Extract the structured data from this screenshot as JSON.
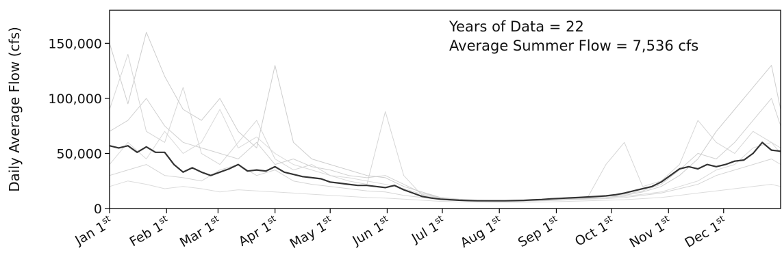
{
  "chart_data": {
    "type": "line",
    "title": "",
    "ylabel": "Daily Average Flow (cfs)",
    "xlabel": "",
    "ylim": [
      0,
      180000
    ],
    "xlim": [
      1,
      366
    ],
    "yticks": [
      {
        "value": 0,
        "label": "0"
      },
      {
        "value": 50000,
        "label": "50,000"
      },
      {
        "value": 100000,
        "label": "100,000"
      },
      {
        "value": 150000,
        "label": "150,000"
      }
    ],
    "xticks": [
      {
        "day": 1,
        "month": "Jan",
        "num": "1",
        "suffix": "st"
      },
      {
        "day": 32,
        "month": "Feb",
        "num": "1",
        "suffix": "st"
      },
      {
        "day": 60,
        "month": "Mar",
        "num": "1",
        "suffix": "st"
      },
      {
        "day": 91,
        "month": "Apr",
        "num": "1",
        "suffix": "st"
      },
      {
        "day": 121,
        "month": "May",
        "num": "1",
        "suffix": "st"
      },
      {
        "day": 152,
        "month": "Jun",
        "num": "1",
        "suffix": "st"
      },
      {
        "day": 182,
        "month": "Jul",
        "num": "1",
        "suffix": "st"
      },
      {
        "day": 213,
        "month": "Aug",
        "num": "1",
        "suffix": "st"
      },
      {
        "day": 244,
        "month": "Sep",
        "num": "1",
        "suffix": "st"
      },
      {
        "day": 274,
        "month": "Oct",
        "num": "1",
        "suffix": "st"
      },
      {
        "day": 305,
        "month": "Nov",
        "num": "1",
        "suffix": "st"
      },
      {
        "day": 335,
        "month": "Dec",
        "num": "1",
        "suffix": "st"
      }
    ],
    "annotations": [
      "Years of Data = 22",
      "Average Summer Flow = 7,536 cfs"
    ],
    "legend": "none",
    "grid": false,
    "series": [
      {
        "role": "average",
        "color": "#333333",
        "x": [
          1,
          6,
          11,
          16,
          21,
          26,
          31,
          36,
          41,
          46,
          51,
          56,
          61,
          66,
          71,
          76,
          81,
          86,
          91,
          96,
          101,
          106,
          111,
          116,
          121,
          126,
          131,
          136,
          141,
          146,
          151,
          156,
          161,
          166,
          171,
          176,
          181,
          186,
          191,
          196,
          201,
          206,
          211,
          216,
          221,
          226,
          231,
          236,
          241,
          246,
          251,
          256,
          261,
          266,
          271,
          276,
          281,
          286,
          291,
          296,
          301,
          306,
          311,
          316,
          321,
          326,
          331,
          336,
          341,
          346,
          351,
          356,
          361,
          366
        ],
        "y": [
          57000,
          55000,
          57000,
          51000,
          56000,
          51000,
          51000,
          40000,
          33000,
          37000,
          33000,
          30000,
          33000,
          36000,
          40000,
          34000,
          35000,
          34000,
          38000,
          33000,
          31000,
          29000,
          28000,
          27000,
          24000,
          23000,
          22000,
          21000,
          21000,
          20000,
          19000,
          21000,
          17000,
          14000,
          11000,
          9500,
          8500,
          8000,
          7500,
          7200,
          7000,
          7000,
          7000,
          7000,
          7200,
          7400,
          7800,
          8200,
          8800,
          9200,
          9600,
          10000,
          10500,
          11000,
          11500,
          12500,
          14000,
          16000,
          18000,
          20000,
          24000,
          30000,
          36000,
          38000,
          36000,
          40000,
          38000,
          40000,
          43000,
          44000,
          50000,
          60000,
          53000,
          52000
        ]
      },
      {
        "role": "annual",
        "color": "#c8c8c8",
        "x": [
          1,
          11,
          21,
          31,
          41,
          51,
          61,
          71,
          81,
          91,
          101,
          111,
          121,
          131,
          141,
          151,
          161,
          171,
          181,
          191,
          201,
          211,
          221,
          231,
          241,
          251,
          261,
          271,
          281,
          291,
          301,
          311,
          321,
          331,
          341,
          351,
          361,
          366
        ],
        "y": [
          150000,
          95000,
          160000,
          120000,
          90000,
          80000,
          100000,
          70000,
          55000,
          130000,
          60000,
          45000,
          40000,
          35000,
          30000,
          28000,
          20000,
          15000,
          10000,
          8000,
          7500,
          7000,
          7000,
          7200,
          7500,
          8000,
          9000,
          10000,
          12000,
          15000,
          20000,
          30000,
          45000,
          70000,
          90000,
          110000,
          130000,
          90000
        ]
      },
      {
        "role": "annual",
        "color": "#d2d2d2",
        "x": [
          1,
          11,
          21,
          31,
          41,
          51,
          61,
          71,
          81,
          91,
          101,
          111,
          121,
          131,
          141,
          151,
          161,
          171,
          181,
          191,
          201,
          211,
          221,
          231,
          241,
          251,
          261,
          271,
          281,
          291,
          301,
          311,
          321,
          331,
          341,
          351,
          361,
          366
        ],
        "y": [
          90000,
          140000,
          70000,
          60000,
          110000,
          50000,
          40000,
          60000,
          80000,
          45000,
          35000,
          40000,
          30000,
          25000,
          22000,
          88000,
          30000,
          12000,
          9000,
          7800,
          7000,
          6800,
          6800,
          7000,
          7500,
          8500,
          10000,
          40000,
          60000,
          20000,
          25000,
          40000,
          80000,
          60000,
          50000,
          70000,
          60000,
          55000
        ]
      },
      {
        "role": "annual",
        "color": "#d6d6d6",
        "x": [
          1,
          11,
          21,
          31,
          41,
          51,
          61,
          71,
          81,
          91,
          101,
          111,
          121,
          131,
          141,
          151,
          161,
          171,
          181,
          191,
          201,
          211,
          221,
          231,
          241,
          251,
          261,
          271,
          281,
          291,
          301,
          311,
          321,
          331,
          341,
          351,
          361,
          366
        ],
        "y": [
          40000,
          60000,
          45000,
          70000,
          50000,
          60000,
          90000,
          55000,
          65000,
          50000,
          40000,
          35000,
          30000,
          28000,
          25000,
          22000,
          18000,
          13000,
          9500,
          8000,
          7200,
          7000,
          7000,
          7200,
          7600,
          8200,
          9000,
          10000,
          11000,
          13000,
          15000,
          20000,
          25000,
          35000,
          40000,
          55000,
          60000,
          50000
        ]
      },
      {
        "role": "annual",
        "color": "#d0d0d0",
        "x": [
          1,
          11,
          21,
          31,
          41,
          51,
          61,
          71,
          81,
          91,
          101,
          111,
          121,
          131,
          141,
          151,
          161,
          171,
          181,
          191,
          201,
          211,
          221,
          231,
          241,
          251,
          261,
          271,
          281,
          291,
          301,
          311,
          321,
          331,
          341,
          351,
          361,
          366
        ],
        "y": [
          30000,
          35000,
          40000,
          30000,
          28000,
          25000,
          35000,
          40000,
          30000,
          35000,
          25000,
          22000,
          20000,
          18000,
          16000,
          15000,
          12000,
          10000,
          8000,
          7200,
          6800,
          6500,
          6500,
          6800,
          7200,
          7800,
          8500,
          9000,
          10000,
          12000,
          14000,
          18000,
          22000,
          30000,
          35000,
          40000,
          45000,
          40000
        ]
      },
      {
        "role": "annual",
        "color": "#d8d8d8",
        "x": [
          1,
          11,
          21,
          31,
          41,
          51,
          61,
          71,
          81,
          91,
          101,
          111,
          121,
          131,
          141,
          151,
          161,
          171,
          181,
          191,
          201,
          211,
          221,
          231,
          241,
          251,
          261,
          271,
          281,
          291,
          301,
          311,
          321,
          331,
          341,
          351,
          361,
          366
        ],
        "y": [
          20000,
          25000,
          22000,
          18000,
          20000,
          18000,
          15000,
          17000,
          16000,
          15000,
          14000,
          13000,
          12000,
          11000,
          10000,
          9500,
          8500,
          7500,
          6500,
          6000,
          5800,
          5500,
          5500,
          5700,
          6000,
          6500,
          7000,
          7500,
          8000,
          9000,
          10000,
          12000,
          14000,
          16000,
          18000,
          20000,
          22000,
          20000
        ]
      },
      {
        "role": "annual",
        "color": "#cccccc",
        "x": [
          1,
          11,
          21,
          31,
          41,
          51,
          61,
          71,
          81,
          91,
          101,
          111,
          121,
          131,
          141,
          151,
          161,
          171,
          181,
          191,
          201,
          211,
          221,
          231,
          241,
          251,
          261,
          271,
          281,
          291,
          301,
          311,
          321,
          331,
          341,
          351,
          361,
          366
        ],
        "y": [
          70000,
          80000,
          100000,
          75000,
          60000,
          55000,
          50000,
          45000,
          60000,
          40000,
          45000,
          38000,
          35000,
          30000,
          28000,
          30000,
          22000,
          14000,
          10000,
          8500,
          7600,
          7200,
          7200,
          7400,
          7800,
          8500,
          9500,
          11000,
          13000,
          16000,
          22000,
          35000,
          50000,
          45000,
          60000,
          80000,
          100000,
          75000
        ]
      }
    ]
  }
}
